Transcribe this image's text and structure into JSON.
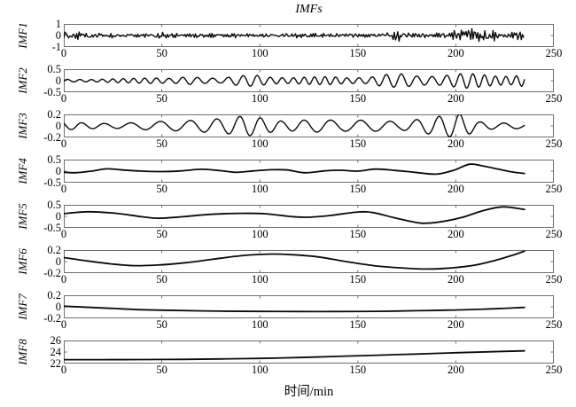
{
  "chart_data": {
    "type": "line",
    "title": "IMFs",
    "xlabel": "时间/min",
    "xlim": [
      0,
      250
    ],
    "xticks": [
      0,
      50,
      100,
      150,
      200,
      250
    ],
    "x_data_end": 235,
    "grid": false,
    "legend": "none",
    "line_color": "#0a0a0a",
    "frame_color": "#6e6e6e",
    "subplots": [
      {
        "name": "IMF1",
        "ylim": [
          -1,
          1
        ],
        "yticks": [
          "1",
          "0",
          "-1"
        ],
        "gen": "noise",
        "seed": 7,
        "envelope": [
          [
            0,
            0.38
          ],
          [
            8,
            0.3
          ],
          [
            18,
            0.16
          ],
          [
            30,
            0.14
          ],
          [
            44,
            0.13
          ],
          [
            52,
            0.4
          ],
          [
            58,
            0.16
          ],
          [
            75,
            0.12
          ],
          [
            90,
            0.14
          ],
          [
            105,
            0.12
          ],
          [
            120,
            0.16
          ],
          [
            135,
            0.12
          ],
          [
            150,
            0.14
          ],
          [
            162,
            0.13
          ],
          [
            170,
            0.46
          ],
          [
            178,
            0.18
          ],
          [
            190,
            0.16
          ],
          [
            200,
            0.28
          ],
          [
            208,
            0.52
          ],
          [
            215,
            0.42
          ],
          [
            222,
            0.3
          ],
          [
            230,
            0.25
          ],
          [
            235,
            0.38
          ]
        ]
      },
      {
        "name": "IMF2",
        "ylim": [
          -0.5,
          0.5
        ],
        "yticks": [
          "0.5",
          "0",
          "-0.5"
        ],
        "gen": "osc",
        "seed": 3,
        "period": 6.6,
        "envelope": [
          [
            0,
            0.06
          ],
          [
            15,
            0.05
          ],
          [
            25,
            0.08
          ],
          [
            35,
            0.1
          ],
          [
            45,
            0.12
          ],
          [
            55,
            0.1
          ],
          [
            63,
            0.17
          ],
          [
            72,
            0.12
          ],
          [
            80,
            0.1
          ],
          [
            88,
            0.2
          ],
          [
            97,
            0.25
          ],
          [
            105,
            0.15
          ],
          [
            115,
            0.12
          ],
          [
            125,
            0.16
          ],
          [
            135,
            0.18
          ],
          [
            145,
            0.12
          ],
          [
            155,
            0.13
          ],
          [
            163,
            0.26
          ],
          [
            172,
            0.3
          ],
          [
            180,
            0.2
          ],
          [
            190,
            0.18
          ],
          [
            198,
            0.26
          ],
          [
            205,
            0.33
          ],
          [
            212,
            0.28
          ],
          [
            220,
            0.2
          ],
          [
            228,
            0.18
          ],
          [
            235,
            0.26
          ]
        ]
      },
      {
        "name": "IMF3",
        "ylim": [
          -0.2,
          0.2
        ],
        "yticks": [
          "0.2",
          "0",
          "-0.2"
        ],
        "gen": "osc",
        "seed": 11,
        "period": 13,
        "envelope": [
          [
            0,
            0.07
          ],
          [
            12,
            0.05
          ],
          [
            25,
            0.04
          ],
          [
            38,
            0.06
          ],
          [
            50,
            0.08
          ],
          [
            62,
            0.09
          ],
          [
            72,
            0.11
          ],
          [
            82,
            0.13
          ],
          [
            93,
            0.18
          ],
          [
            102,
            0.13
          ],
          [
            112,
            0.08
          ],
          [
            122,
            0.1
          ],
          [
            132,
            0.11
          ],
          [
            142,
            0.09
          ],
          [
            152,
            0.1
          ],
          [
            162,
            0.09
          ],
          [
            172,
            0.07
          ],
          [
            182,
            0.12
          ],
          [
            192,
            0.17
          ],
          [
            202,
            0.21
          ],
          [
            212,
            0.07
          ],
          [
            222,
            0.05
          ],
          [
            230,
            0.05
          ],
          [
            235,
            0.04
          ]
        ]
      },
      {
        "name": "IMF4",
        "ylim": [
          -0.5,
          0.5
        ],
        "yticks": [
          "0.5",
          "0",
          "-0.5"
        ],
        "gen": "spline",
        "points": [
          [
            0,
            -0.05
          ],
          [
            6,
            -0.07
          ],
          [
            14,
            0.0
          ],
          [
            22,
            0.1
          ],
          [
            30,
            0.05
          ],
          [
            40,
            0.0
          ],
          [
            50,
            -0.02
          ],
          [
            60,
            0.01
          ],
          [
            70,
            0.08
          ],
          [
            80,
            0.02
          ],
          [
            88,
            -0.05
          ],
          [
            97,
            0.01
          ],
          [
            106,
            0.06
          ],
          [
            114,
            0.05
          ],
          [
            123,
            -0.07
          ],
          [
            133,
            0.01
          ],
          [
            141,
            0.04
          ],
          [
            150,
            0.0
          ],
          [
            159,
            0.09
          ],
          [
            169,
            0.03
          ],
          [
            179,
            -0.05
          ],
          [
            190,
            -0.13
          ],
          [
            199,
            0.04
          ],
          [
            207,
            0.3
          ],
          [
            214,
            0.22
          ],
          [
            222,
            0.08
          ],
          [
            229,
            -0.04
          ],
          [
            235,
            -0.1
          ]
        ]
      },
      {
        "name": "IMF5",
        "ylim": [
          -0.5,
          0.5
        ],
        "yticks": [
          "0.5",
          "0",
          "-0.5"
        ],
        "gen": "spline",
        "points": [
          [
            0,
            0.12
          ],
          [
            13,
            0.2
          ],
          [
            27,
            0.13
          ],
          [
            40,
            -0.02
          ],
          [
            48,
            -0.08
          ],
          [
            60,
            -0.02
          ],
          [
            75,
            0.09
          ],
          [
            90,
            0.13
          ],
          [
            103,
            0.11
          ],
          [
            115,
            0.0
          ],
          [
            124,
            -0.04
          ],
          [
            136,
            0.04
          ],
          [
            150,
            0.19
          ],
          [
            158,
            0.16
          ],
          [
            168,
            -0.05
          ],
          [
            176,
            -0.2
          ],
          [
            183,
            -0.3
          ],
          [
            192,
            -0.24
          ],
          [
            203,
            -0.05
          ],
          [
            214,
            0.25
          ],
          [
            224,
            0.41
          ],
          [
            235,
            0.3
          ]
        ]
      },
      {
        "name": "IMF6",
        "ylim": [
          -0.2,
          0.2
        ],
        "yticks": [
          "0.2",
          "0",
          "-0.2"
        ],
        "gen": "spline",
        "points": [
          [
            0,
            0.07
          ],
          [
            12,
            0.01
          ],
          [
            24,
            -0.04
          ],
          [
            36,
            -0.07
          ],
          [
            48,
            -0.06
          ],
          [
            62,
            -0.02
          ],
          [
            76,
            0.04
          ],
          [
            90,
            0.1
          ],
          [
            104,
            0.13
          ],
          [
            116,
            0.12
          ],
          [
            130,
            0.08
          ],
          [
            144,
            0.0
          ],
          [
            158,
            -0.07
          ],
          [
            172,
            -0.11
          ],
          [
            186,
            -0.13
          ],
          [
            198,
            -0.11
          ],
          [
            210,
            -0.06
          ],
          [
            220,
            0.02
          ],
          [
            228,
            0.1
          ],
          [
            235,
            0.18
          ]
        ]
      },
      {
        "name": "IMF7",
        "ylim": [
          -0.2,
          0.2
        ],
        "yticks": [
          "0.2",
          "0",
          "-0.2"
        ],
        "gen": "spline",
        "points": [
          [
            0,
            0.01
          ],
          [
            20,
            -0.02
          ],
          [
            40,
            -0.05
          ],
          [
            60,
            -0.065
          ],
          [
            80,
            -0.075
          ],
          [
            100,
            -0.08
          ],
          [
            120,
            -0.082
          ],
          [
            140,
            -0.082
          ],
          [
            160,
            -0.078
          ],
          [
            180,
            -0.068
          ],
          [
            200,
            -0.055
          ],
          [
            215,
            -0.04
          ],
          [
            226,
            -0.025
          ],
          [
            235,
            -0.01
          ]
        ]
      },
      {
        "name": "IMF8",
        "ylim": [
          22,
          26
        ],
        "yticks": [
          "26",
          "24",
          "22"
        ],
        "gen": "spline",
        "points": [
          [
            0,
            22.68
          ],
          [
            20,
            22.68
          ],
          [
            40,
            22.7
          ],
          [
            60,
            22.73
          ],
          [
            80,
            22.8
          ],
          [
            100,
            22.9
          ],
          [
            120,
            23.05
          ],
          [
            140,
            23.25
          ],
          [
            160,
            23.45
          ],
          [
            180,
            23.65
          ],
          [
            200,
            23.88
          ],
          [
            218,
            24.05
          ],
          [
            235,
            24.2
          ]
        ]
      }
    ]
  }
}
